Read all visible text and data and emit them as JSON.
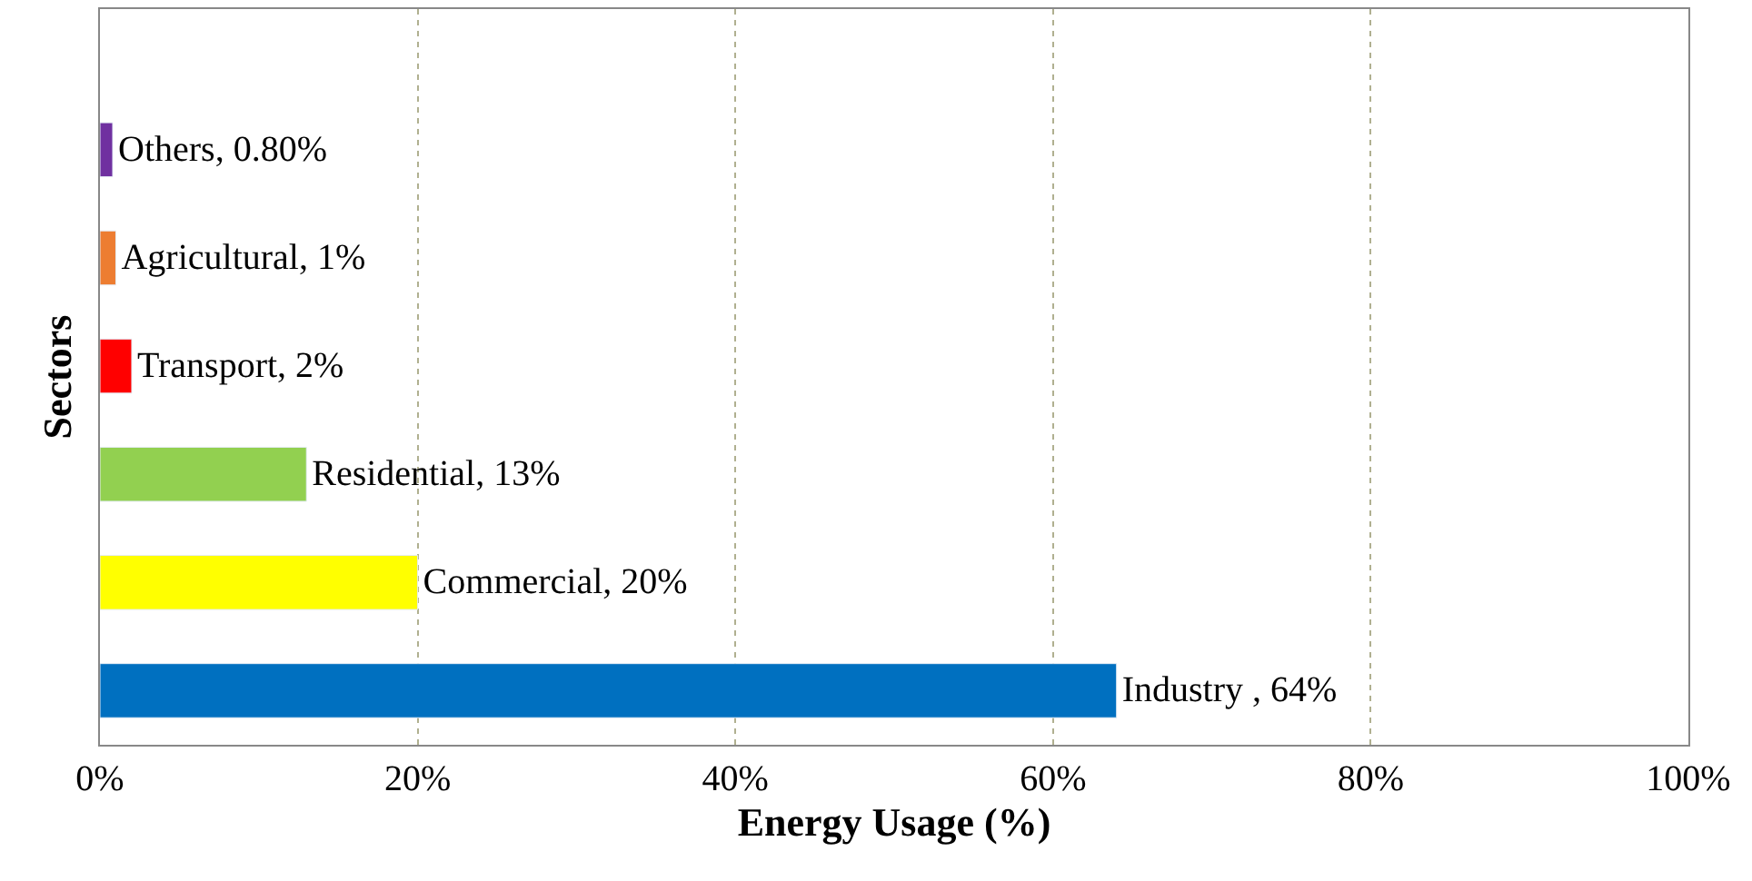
{
  "chart_data": {
    "type": "bar",
    "orientation": "horizontal",
    "xlabel": "Energy Usage (%)",
    "ylabel": "Sectors",
    "categories": [
      null,
      null,
      null,
      null,
      null,
      null
    ],
    "values": [
      0.8,
      1,
      2,
      13,
      20,
      64
    ],
    "colors": [
      "#7030a0",
      "#ed7d31",
      "#ff0000",
      "#92d050",
      "#ffff00",
      "#0070c0"
    ],
    "value_labels": [
      "Others, 0.80%",
      "Agricultural, 1%",
      "Transport, 2%",
      "Residential, 13%",
      "Commercial, 20%",
      "Industry , 64%"
    ],
    "xlim": [
      0,
      100
    ],
    "xticks": [
      {
        "value": 0,
        "label": "0%"
      },
      {
        "value": 20,
        "label": "20%"
      },
      {
        "value": 40,
        "label": "40%"
      },
      {
        "value": 60,
        "label": "60%"
      },
      {
        "value": 80,
        "label": "80%"
      },
      {
        "value": 100,
        "label": "100%"
      }
    ],
    "grid": "x",
    "legend": false,
    "tick_labels": "x"
  }
}
